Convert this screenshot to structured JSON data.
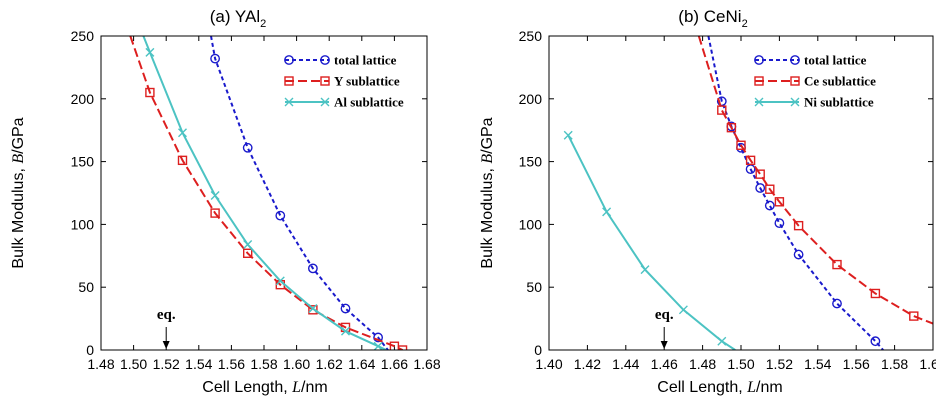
{
  "chart_data": [
    {
      "type": "line",
      "title": "(a) YAl",
      "title_sub": "2",
      "xlabel": "Cell Length, ",
      "xlabel_var": "L",
      "xlabel_unit": "/nm",
      "ylabel": "Bulk Modulus, ",
      "ylabel_var": "B",
      "ylabel_unit": "/GPa",
      "xlim": [
        1.48,
        1.68
      ],
      "ylim": [
        0,
        250
      ],
      "xticks": [
        "1.48",
        "1.50",
        "1.52",
        "1.54",
        "1.56",
        "1.58",
        "1.60",
        "1.62",
        "1.64",
        "1.66",
        "1.68"
      ],
      "yticks": [
        "0",
        "50",
        "100",
        "150",
        "200",
        "250"
      ],
      "legend_position": "top-right",
      "annotation": {
        "text": "eq.",
        "x": 1.52
      },
      "series": [
        {
          "name": "total lattice",
          "color": "#1a1acc",
          "dash": "4,3",
          "marker": "circle",
          "x": [
            1.55,
            1.57,
            1.59,
            1.61,
            1.63,
            1.65
          ],
          "y": [
            232,
            161,
            107,
            65,
            33,
            10
          ],
          "line_x": [
            1.5475,
            1.55,
            1.57,
            1.59,
            1.61,
            1.63,
            1.65,
            1.656
          ],
          "line_y": [
            250,
            232,
            161,
            107,
            65,
            33,
            10,
            0
          ]
        },
        {
          "name": "Y sublattice",
          "color": "#dd1f1f",
          "dash": "9,4",
          "marker": "square",
          "x": [
            1.51,
            1.53,
            1.55,
            1.57,
            1.59,
            1.61,
            1.63,
            1.66,
            1.665
          ],
          "y": [
            205,
            151,
            109,
            77,
            52,
            32,
            18,
            3,
            0
          ],
          "line_x": [
            1.498,
            1.51,
            1.53,
            1.55,
            1.57,
            1.59,
            1.61,
            1.63,
            1.66,
            1.665
          ],
          "line_y": [
            250,
            205,
            151,
            109,
            77,
            52,
            32,
            18,
            3,
            0
          ]
        },
        {
          "name": "Al sublattice",
          "color": "#4cc3c3",
          "dash": "",
          "marker": "x",
          "x": [
            1.51,
            1.53,
            1.55,
            1.57,
            1.59,
            1.61,
            1.63,
            1.65
          ],
          "y": [
            237,
            173,
            123,
            84,
            55,
            33,
            15,
            3
          ],
          "line_x": [
            1.506,
            1.51,
            1.53,
            1.55,
            1.57,
            1.59,
            1.61,
            1.63,
            1.65,
            1.655
          ],
          "line_y": [
            250,
            237,
            173,
            123,
            84,
            55,
            33,
            15,
            3,
            0
          ]
        }
      ]
    },
    {
      "type": "line",
      "title": "(b) CeNi",
      "title_sub": "2",
      "xlabel": "Cell Length, ",
      "xlabel_var": "L",
      "xlabel_unit": "/nm",
      "ylabel": "Bulk Modulus, ",
      "ylabel_var": "B",
      "ylabel_unit": "/GPa",
      "xlim": [
        1.4,
        1.6
      ],
      "ylim": [
        0,
        250
      ],
      "xticks": [
        "1.40",
        "1.42",
        "1.44",
        "1.46",
        "1.48",
        "1.50",
        "1.52",
        "1.54",
        "1.56",
        "1.58",
        "1.60"
      ],
      "yticks": [
        "0",
        "50",
        "100",
        "150",
        "200",
        "250"
      ],
      "legend_position": "top-right",
      "annotation": {
        "text": "eq.",
        "x": 1.46
      },
      "series": [
        {
          "name": "total lattice",
          "color": "#1a1acc",
          "dash": "4,3",
          "marker": "circle",
          "x": [
            1.49,
            1.495,
            1.5,
            1.505,
            1.51,
            1.515,
            1.52,
            1.53,
            1.55,
            1.57
          ],
          "y": [
            198,
            178,
            161,
            144,
            129,
            115,
            101,
            76,
            37,
            7
          ],
          "line_x": [
            1.483,
            1.49,
            1.495,
            1.5,
            1.505,
            1.51,
            1.515,
            1.52,
            1.53,
            1.55,
            1.57,
            1.574
          ],
          "line_y": [
            250,
            198,
            178,
            161,
            144,
            129,
            115,
            101,
            76,
            37,
            7,
            0
          ]
        },
        {
          "name": "Ce sublattice",
          "color": "#dd1f1f",
          "dash": "9,4",
          "marker": "square",
          "x": [
            1.49,
            1.495,
            1.5,
            1.505,
            1.51,
            1.515,
            1.52,
            1.53,
            1.55,
            1.57,
            1.59
          ],
          "y": [
            191,
            177,
            163,
            151,
            140,
            128,
            118,
            99,
            68,
            45,
            27
          ],
          "line_x": [
            1.478,
            1.49,
            1.495,
            1.5,
            1.505,
            1.51,
            1.515,
            1.52,
            1.53,
            1.55,
            1.57,
            1.59,
            1.6
          ],
          "line_y": [
            250,
            191,
            177,
            163,
            151,
            140,
            128,
            118,
            99,
            68,
            45,
            27,
            21
          ]
        },
        {
          "name": "Ni sublattice",
          "color": "#4cc3c3",
          "dash": "",
          "marker": "x",
          "x": [
            1.41,
            1.43,
            1.45,
            1.47,
            1.49
          ],
          "y": [
            171,
            110,
            64,
            32,
            7
          ],
          "line_x": [
            1.41,
            1.43,
            1.45,
            1.47,
            1.49,
            1.497
          ],
          "line_y": [
            171,
            110,
            64,
            32,
            7,
            0
          ]
        }
      ]
    }
  ]
}
